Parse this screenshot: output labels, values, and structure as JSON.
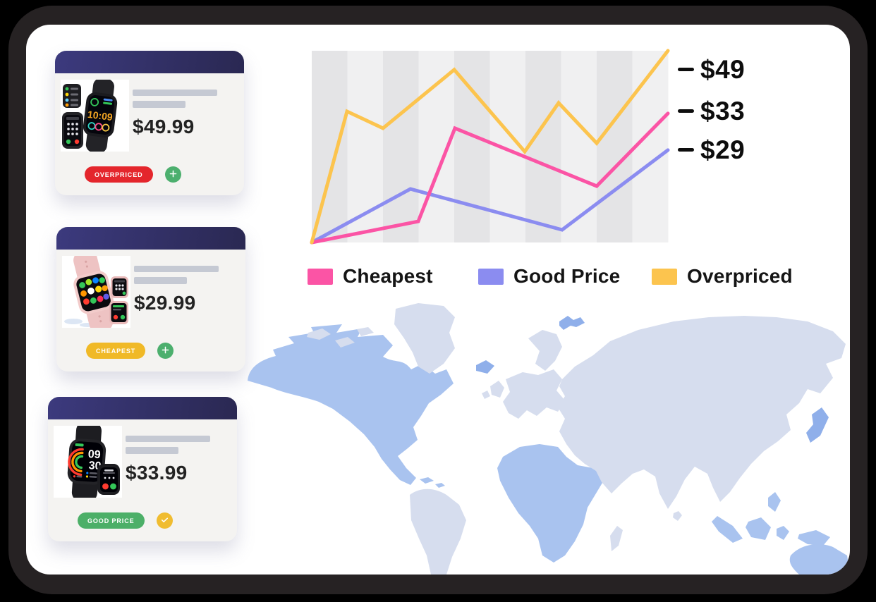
{
  "theme": {
    "background": "#000000",
    "bezel": "#262223",
    "panel": "#ffffff",
    "card_bg": "#f4f3f1",
    "card_header_from": "#3c3a7e",
    "card_header_to": "#2a2852",
    "placeholder": "#c5c9d3",
    "price_color": "#222222"
  },
  "cards": [
    {
      "image": "black-smartwatch",
      "price": "$49.99",
      "badge": {
        "label": "OVERPRICED",
        "color": "#e4262c"
      },
      "action": {
        "icon": "plus",
        "color": "#4caf6e"
      }
    },
    {
      "image": "pink-smartwatch",
      "price": "$29.99",
      "badge": {
        "label": "CHEAPEST",
        "color": "#f0b927"
      },
      "action": {
        "icon": "plus",
        "color": "#4caf6e"
      }
    },
    {
      "image": "black-fitness-watch",
      "price": "$33.99",
      "badge": {
        "label": "GOOD PRICE",
        "color": "#4caf68"
      },
      "action": {
        "icon": "check",
        "color": "#f0bc30"
      }
    }
  ],
  "chart_data": {
    "type": "line",
    "title": "",
    "stripes": 10,
    "stripe_colors": [
      "#e4e4e6",
      "#f0f0f1"
    ],
    "grid": "vertical-stripes",
    "legend_position": "bottom",
    "series": [
      {
        "name": "Good Price",
        "color": "#8b8cf0",
        "end_value": "$29",
        "points_pct": [
          [
            0,
            0
          ],
          [
            27.7,
            27.9
          ],
          [
            70.3,
            6.6
          ],
          [
            100,
            48.2
          ]
        ]
      },
      {
        "name": "Cheapest",
        "color": "#fb54a5",
        "end_value": "$33",
        "points_pct": [
          [
            0,
            0
          ],
          [
            29.9,
            11.0
          ],
          [
            40.2,
            59.6
          ],
          [
            80,
            29.4
          ],
          [
            100,
            67.3
          ]
        ]
      },
      {
        "name": "Overpriced",
        "color": "#fcc44e",
        "end_value": "$49",
        "points_pct": [
          [
            0,
            0
          ],
          [
            9.9,
            68.4
          ],
          [
            20,
            59.6
          ],
          [
            40,
            90.1
          ],
          [
            59.8,
            47.4
          ],
          [
            69.3,
            72.8
          ],
          [
            80,
            51.8
          ],
          [
            100,
            100
          ]
        ]
      }
    ],
    "y_ticks": [
      {
        "label": "$49",
        "height_pct": 90.1
      },
      {
        "label": "$33",
        "height_pct": 68.4
      },
      {
        "label": "$29",
        "height_pct": 48.2
      }
    ],
    "legend": [
      {
        "label": "Cheapest",
        "color": "#fb54a5"
      },
      {
        "label": "Good Price",
        "color": "#8b8cf0"
      },
      {
        "label": "Overpriced",
        "color": "#fcc44e"
      }
    ]
  },
  "map": {
    "name": "world-map",
    "colors": {
      "primary": "#a9c3ef",
      "secondary": "#d6ddee",
      "accent": "#8fafea"
    }
  }
}
